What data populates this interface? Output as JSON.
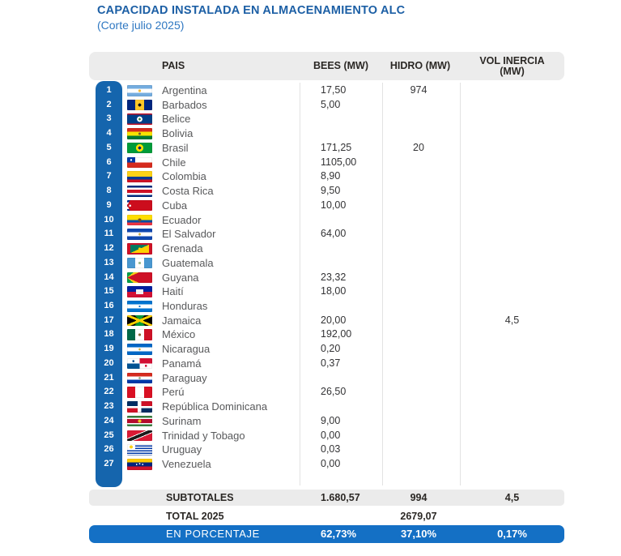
{
  "header": {
    "title": "CAPACIDAD INSTALADA EN ALMACENAMIENTO ALC",
    "subtitle": "(Corte julio 2025)"
  },
  "colors": {
    "title_blue": "#1c5fa5",
    "subtitle_blue": "#2f78c2",
    "rail_blue": "#1565ad",
    "percent_bar_blue": "#1470c5",
    "header_gray": "#ececec",
    "subtotal_gray": "#ebebeb",
    "divider_gray": "#e2e2e2",
    "country_text": "#58595b",
    "value_text": "#333335"
  },
  "table": {
    "columns": {
      "pais": "PAIS",
      "bees": "BEES (MW)",
      "hidro": "HIDRO (MW)",
      "vol_line1": "VOL INERCIA",
      "vol_line2": "(MW)"
    },
    "rows": [
      {
        "n": "1",
        "country": "Argentina",
        "bees": "17,50",
        "hidro": "974",
        "vol": "",
        "flag_icon": "argentina-flag",
        "flag": "radial-gradient(circle at 50% 50%, #f2b93c 0 1.6px, rgba(0,0,0,0) 1.8px), linear-gradient(180deg, #74acdf 0 33%, #ffffff 33% 67%, #74acdf 67%)"
      },
      {
        "n": "2",
        "country": "Barbados",
        "bees": "5,00",
        "hidro": "",
        "vol": "",
        "flag_icon": "barbados-flag",
        "flag": "radial-gradient(circle at 50% 50%, #121212 0 1.8px, rgba(0,0,0,0) 2px), linear-gradient(90deg, #00267f 0 33%, #ffc726 33% 67%, #00267f 67%)"
      },
      {
        "n": "3",
        "country": "Belice",
        "bees": "",
        "hidro": "",
        "vol": "",
        "flag_icon": "belize-flag",
        "flag": "radial-gradient(circle at 50% 50%, #3e7f3e 0 1.4px, #ffffff 1.4px 3.2px, rgba(0,0,0,0) 3.5px), linear-gradient(180deg, #ce1126 0 12%, #003f87 12% 88%, #ce1126 88%)"
      },
      {
        "n": "4",
        "country": "Bolivia",
        "bees": "",
        "hidro": "",
        "vol": "",
        "flag_icon": "bolivia-flag",
        "flag": "radial-gradient(circle at 50% 50%, #7a5c2e 0 1.4px, rgba(0,0,0,0) 1.6px), linear-gradient(180deg, #d52b1e 0 33%, #f9e300 33% 67%, #007934 67%)"
      },
      {
        "n": "5",
        "country": "Brasil",
        "bees": "171,25",
        "hidro": "20",
        "vol": "",
        "flag_icon": "brazil-flag",
        "flag": "radial-gradient(circle at 50% 50%, #002776 0 1.8px, #fedf00 1.8px 4.4px, rgba(0,0,0,0) 4.7px), linear-gradient(#009b3a, #009b3a)"
      },
      {
        "n": "6",
        "country": "Chile",
        "bees": "1105,00",
        "hidro": "",
        "vol": "",
        "flag_icon": "chile-flag",
        "flag": "radial-gradient(circle at 5px 3.4px, #ffffff 0 1.1px, rgba(0,0,0,0) 1.3px), linear-gradient(90deg, #0039a6 0 10px, #ffffff 10px) left top/100% 50% no-repeat, linear-gradient(#d52b1e, #d52b1e)"
      },
      {
        "n": "7",
        "country": "Colombia",
        "bees": "8,90",
        "hidro": "",
        "vol": "",
        "flag_icon": "colombia-flag",
        "flag": "linear-gradient(180deg, #fcd116 0 50%, #003893 50% 75%, #ce1126 75%)"
      },
      {
        "n": "8",
        "country": "Costa Rica",
        "bees": "9,50",
        "hidro": "",
        "vol": "",
        "flag_icon": "costa-rica-flag",
        "flag": "linear-gradient(180deg, #002b7f 0 17%, #ffffff 17% 34%, #ce1126 34% 66%, #ffffff 66% 83%, #002b7f 83%)"
      },
      {
        "n": "9",
        "country": "Cuba",
        "bees": "10,00",
        "hidro": "",
        "vol": "",
        "flag_icon": "cuba-flag",
        "flag": "radial-gradient(circle at 3.6px 6.8px, #ffffff 0 1.2px, rgba(0,0,0,0) 1.4px), conic-gradient(from 30deg at 0% 50%, #cc0d1d 0 120deg, rgba(0,0,0,0) 120deg), repeating-linear-gradient(180deg, #002a8f 0 2.7px, #ffffff 2.7px 5.4px)"
      },
      {
        "n": "10",
        "country": "Ecuador",
        "bees": "",
        "hidro": "",
        "vol": "",
        "flag_icon": "ecuador-flag",
        "flag": "radial-gradient(circle at 50% 50%, #6b4f2e 0 2px, rgba(0,0,0,0) 2.2px), linear-gradient(180deg, #ffdd00 0 50%, #034ea2 50% 75%, #ef3340 75%)"
      },
      {
        "n": "11",
        "country": "El Salvador",
        "bees": "64,00",
        "hidro": "",
        "vol": "",
        "flag_icon": "el-salvador-flag",
        "flag": "radial-gradient(circle at 50% 50%, #c9a93c 0 1.3px, rgba(0,0,0,0) 1.5px), linear-gradient(180deg, #0f47af 0 33%, #ffffff 33% 67%, #0f47af 67%)"
      },
      {
        "n": "12",
        "country": "Grenada",
        "bees": "",
        "hidro": "",
        "vol": "",
        "flag_icon": "grenada-flag",
        "flag": "radial-gradient(circle at 50% 50%, #ffd100 0 1.6px, rgba(0,0,0,0) 1.8px), linear-gradient(180deg, #ce1126 0 14%, rgba(0,0,0,0) 14% 86%, #ce1126 86%), linear-gradient(90deg, #ce1126 0 4px, rgba(0,0,0,0) 4px calc(100% - 4px), #ce1126 calc(100% - 4px)), linear-gradient(to bottom right, #007a5e 0 50%, #ffd100 50%)"
      },
      {
        "n": "13",
        "country": "Guatemala",
        "bees": "",
        "hidro": "",
        "vol": "",
        "flag_icon": "guatemala-flag",
        "flag": "radial-gradient(circle at 50% 50%, #9ab98a 0 1.5px, rgba(0,0,0,0) 1.7px), linear-gradient(90deg, #4997d0 0 33%, #ffffff 33% 67%, #4997d0 67%)"
      },
      {
        "n": "14",
        "country": "Guyana",
        "bees": "23,32",
        "hidro": "",
        "vol": "",
        "flag_icon": "guyana-flag",
        "flag": "conic-gradient(from 66deg at 0% 50%, #ce1126 0 48deg, rgba(0,0,0,0) 48deg), conic-gradient(from 50deg at 0% 50%, #fcd116 0 80deg, rgba(0,0,0,0) 80deg), linear-gradient(#009e49, #009e49)"
      },
      {
        "n": "15",
        "country": "Haití",
        "bees": "18,00",
        "hidro": "",
        "vol": "",
        "flag_icon": "haiti-flag",
        "flag": "linear-gradient(#f0f0f0, #f0f0f0) center/9px 6px no-repeat, linear-gradient(180deg, #00209f 0 50%, #d21034 50%)"
      },
      {
        "n": "16",
        "country": "Honduras",
        "bees": "",
        "hidro": "",
        "vol": "",
        "flag_icon": "honduras-flag",
        "flag": "radial-gradient(circle at 50% 50%, #0073cf 0 1px, rgba(0,0,0,0) 1.2px), linear-gradient(180deg, #0073cf 0 33%, #ffffff 33% 67%, #0073cf 67%)"
      },
      {
        "n": "17",
        "country": "Jamaica",
        "bees": "20,00",
        "hidro": "",
        "vol": "4,5",
        "flag_icon": "jamaica-flag",
        "flag": "linear-gradient(to top right, rgba(0,0,0,0) 44%, #fed100 44% 56%, rgba(0,0,0,0) 56%), linear-gradient(to bottom right, rgba(0,0,0,0) 44%, #fed100 44% 56%, rgba(0,0,0,0) 56%), conic-gradient(from 315deg, #009b3a 0 90deg, #000000 90deg 180deg, #009b3a 180deg 270deg, #000000 270deg)"
      },
      {
        "n": "18",
        "country": "México",
        "bees": "192,00",
        "hidro": "",
        "vol": "",
        "flag_icon": "mexico-flag",
        "flag": "radial-gradient(circle at 50% 50%, #8a6d3b 0 1.6px, rgba(0,0,0,0) 1.8px), linear-gradient(90deg, #006847 0 33%, #ffffff 33% 67%, #ce1126 67%)"
      },
      {
        "n": "19",
        "country": "Nicaragua",
        "bees": "0,20",
        "hidro": "",
        "vol": "",
        "flag_icon": "nicaragua-flag",
        "flag": "radial-gradient(circle at 50% 50%, #d4af37 0 1.2px, rgba(0,0,0,0) 1.4px), linear-gradient(180deg, #0067c6 0 33%, #ffffff 33% 67%, #0067c6 67%)"
      },
      {
        "n": "20",
        "country": "Panamá",
        "bees": "0,37",
        "hidro": "",
        "vol": "",
        "flag_icon": "panama-flag",
        "flag": "radial-gradient(circle at 25% 28%, #005293 0 1.3px, rgba(0,0,0,0) 1.5px), radial-gradient(circle at 75% 72%, #d21034 0 1.3px, rgba(0,0,0,0) 1.5px), conic-gradient(from 0deg, #d21034 0 90deg, #ffffff 90deg 180deg, #005293 180deg 270deg, #ffffff 270deg)"
      },
      {
        "n": "21",
        "country": "Paraguay",
        "bees": "",
        "hidro": "",
        "vol": "",
        "flag_icon": "paraguay-flag",
        "flag": "radial-gradient(circle at 50% 50%, #a3b18a 0 1.3px, rgba(0,0,0,0) 1.5px), linear-gradient(180deg, #d52b1e 0 33%, #ffffff 33% 67%, #0038a8 67%)"
      },
      {
        "n": "22",
        "country": "Perú",
        "bees": "26,50",
        "hidro": "",
        "vol": "",
        "flag_icon": "peru-flag",
        "flag": "linear-gradient(90deg, #d91023 0 33%, #ffffff 33% 67%, #d91023 67%)"
      },
      {
        "n": "23",
        "country": "República Dominicana",
        "bees": "",
        "hidro": "",
        "vol": "",
        "flag_icon": "dominican-republic-flag",
        "flag": "linear-gradient(#ffffff, #ffffff) center/100% 2.6px no-repeat, linear-gradient(#ffffff, #ffffff) center/4.5px 100% no-repeat, conic-gradient(from 0deg, #ce1126 0 90deg, #002d62 90deg 180deg, #ce1126 180deg 270deg, #002d62 270deg)"
      },
      {
        "n": "24",
        "country": "Surinam",
        "bees": "9,00",
        "hidro": "",
        "vol": "",
        "flag_icon": "suriname-flag",
        "flag": "radial-gradient(circle at 50% 50%, #ecc81d 0 2px, rgba(0,0,0,0) 2.2px), linear-gradient(180deg, #377e3f 0 20%, #ffffff 20% 32%, #b40a2d 32% 68%, #ffffff 68% 80%, #377e3f 80%)"
      },
      {
        "n": "25",
        "country": "Trinidad y Tobago",
        "bees": "0,00",
        "hidro": "",
        "vol": "",
        "flag_icon": "trinidad-tobago-flag",
        "flag": "linear-gradient(to bottom right, #da1a35 0 38%, #ffffff 38% 42%, #1a1a1a 42% 58%, #ffffff 58% 62%, #da1a35 62%)"
      },
      {
        "n": "26",
        "country": "Uruguay",
        "bees": "0,03",
        "hidro": "",
        "vol": "",
        "flag_icon": "uruguay-flag",
        "flag": "radial-gradient(circle at 5px 3.4px, #fcd116 0 1.9px, rgba(0,0,0,0) 2.1px), linear-gradient(#ffffff, #ffffff) left top/10px 6.8px no-repeat, repeating-linear-gradient(180deg, #ffffff 0 1.5px, #0038a8 1.5px 3px)"
      },
      {
        "n": "27",
        "country": "Venezuela",
        "bees": "0,00",
        "hidro": "",
        "vol": "",
        "flag_icon": "venezuela-flag",
        "flag": "radial-gradient(circle at 38% 50%, #ffffff 0 0.8px, rgba(0,0,0,0) 1px), radial-gradient(circle at 50% 44%, #ffffff 0 0.8px, rgba(0,0,0,0) 1px), radial-gradient(circle at 62% 50%, #ffffff 0 0.8px, rgba(0,0,0,0) 1px), linear-gradient(180deg, #ffcc00 0 33%, #00247d 33% 67%, #cf142b 67%)"
      }
    ],
    "footer": {
      "subtotals_label": "SUBTOTALES",
      "subtotals": {
        "bees": "1.680,57",
        "hidro": "994",
        "vol": "4,5"
      },
      "total_label": "TOTAL 2025",
      "total": {
        "hidro": "2679,07"
      },
      "percent_label": "EN PORCENTAJE",
      "percent": {
        "bees": "62,73%",
        "hidro": "37,10%",
        "vol": "0,17%"
      }
    }
  },
  "chart_data": {
    "type": "table",
    "title": "CAPACIDAD INSTALADA EN ALMACENAMIENTO ALC",
    "subtitle": "(Corte julio 2025)",
    "columns": [
      "PAIS",
      "BEES (MW)",
      "HIDRO (MW)",
      "VOL INERCIA (MW)"
    ],
    "rows": [
      [
        "Argentina",
        "17,50",
        "974",
        ""
      ],
      [
        "Barbados",
        "5,00",
        "",
        ""
      ],
      [
        "Belice",
        "",
        "",
        ""
      ],
      [
        "Bolivia",
        "",
        "",
        ""
      ],
      [
        "Brasil",
        "171,25",
        "20",
        ""
      ],
      [
        "Chile",
        "1105,00",
        "",
        ""
      ],
      [
        "Colombia",
        "8,90",
        "",
        ""
      ],
      [
        "Costa Rica",
        "9,50",
        "",
        ""
      ],
      [
        "Cuba",
        "10,00",
        "",
        ""
      ],
      [
        "Ecuador",
        "",
        "",
        ""
      ],
      [
        "El Salvador",
        "64,00",
        "",
        ""
      ],
      [
        "Grenada",
        "",
        "",
        ""
      ],
      [
        "Guatemala",
        "",
        "",
        ""
      ],
      [
        "Guyana",
        "23,32",
        "",
        ""
      ],
      [
        "Haití",
        "18,00",
        "",
        ""
      ],
      [
        "Honduras",
        "",
        "",
        ""
      ],
      [
        "Jamaica",
        "20,00",
        "",
        "4,5"
      ],
      [
        "México",
        "192,00",
        "",
        ""
      ],
      [
        "Nicaragua",
        "0,20",
        "",
        ""
      ],
      [
        "Panamá",
        "0,37",
        "",
        ""
      ],
      [
        "Paraguay",
        "",
        "",
        ""
      ],
      [
        "Perú",
        "26,50",
        "",
        ""
      ],
      [
        "República Dominicana",
        "",
        "",
        ""
      ],
      [
        "Surinam",
        "9,00",
        "",
        ""
      ],
      [
        "Trinidad y Tobago",
        "0,00",
        "",
        ""
      ],
      [
        "Uruguay",
        "0,03",
        "",
        ""
      ],
      [
        "Venezuela",
        "0,00",
        "",
        ""
      ]
    ],
    "subtotals": [
      "SUBTOTALES",
      "1.680,57",
      "994",
      "4,5"
    ],
    "total_2025": [
      "TOTAL 2025",
      "",
      "2679,07",
      ""
    ],
    "en_porcentaje": [
      "EN PORCENTAJE",
      "62,73%",
      "37,10%",
      "0,17%"
    ]
  }
}
